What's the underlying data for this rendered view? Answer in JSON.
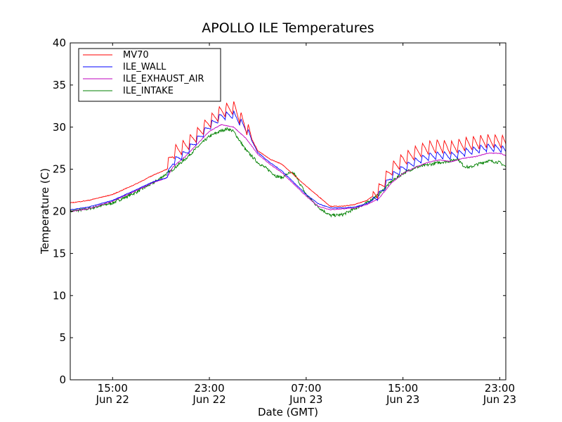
{
  "chart_data": {
    "type": "line",
    "title": "APOLLO ILE Temperatures",
    "xlabel": "Date (GMT)",
    "ylabel": "Temperature (C)",
    "ylim": [
      0,
      40
    ],
    "yticks": [
      0,
      5,
      10,
      15,
      20,
      25,
      30,
      35,
      40
    ],
    "xlim": [
      11.5,
      47.5
    ],
    "xaxis_unit": "hours since Jun 22 00:00 GMT",
    "xticks": [
      {
        "value": 15,
        "time": "15:00",
        "date": "Jun 22"
      },
      {
        "value": 23,
        "time": "23:00",
        "date": "Jun 22"
      },
      {
        "value": 31,
        "time": "07:00",
        "date": "Jun 23"
      },
      {
        "value": 39,
        "time": "15:00",
        "date": "Jun 23"
      },
      {
        "value": 47,
        "time": "23:00",
        "date": "Jun 23"
      }
    ],
    "legend_position": "top-left",
    "series": [
      {
        "name": "MV70",
        "color": "#ff0000",
        "cycle_peaks": true,
        "x": [
          11.5,
          13,
          15,
          17,
          18.5,
          19.5,
          20,
          21,
          22,
          23,
          24,
          25,
          26,
          27,
          28,
          29,
          30,
          31,
          32,
          33,
          34,
          35,
          36,
          37,
          38,
          39,
          40,
          41,
          42,
          43,
          44,
          45,
          46,
          47,
          47.5
        ],
        "values": [
          21.0,
          21.3,
          22.0,
          23.3,
          24.4,
          25.0,
          26.8,
          27.6,
          29.0,
          30.5,
          31.7,
          32.2,
          30.0,
          27.2,
          26.2,
          25.6,
          24.3,
          23.0,
          21.8,
          20.6,
          20.6,
          20.8,
          21.3,
          22.3,
          24.8,
          26.0,
          26.8,
          27.4,
          27.6,
          27.4,
          27.8,
          28.0,
          28.2,
          28.2,
          28.0
        ]
      },
      {
        "name": "ILE_WALL",
        "color": "#0000ff",
        "cycle_peaks": true,
        "x": [
          11.5,
          13,
          15,
          17,
          18.5,
          19.5,
          20,
          21,
          22,
          23,
          24,
          25,
          26,
          27,
          28,
          29,
          30,
          31,
          32,
          33,
          34,
          35,
          36,
          37,
          38,
          39,
          40,
          41,
          42,
          43,
          44,
          45,
          46,
          47,
          47.5
        ],
        "values": [
          20.2,
          20.5,
          21.3,
          22.6,
          23.6,
          24.0,
          25.8,
          26.8,
          28.4,
          30.0,
          31.2,
          31.4,
          29.8,
          27.0,
          25.8,
          24.8,
          23.4,
          22.0,
          20.9,
          20.4,
          20.4,
          20.5,
          20.9,
          21.8,
          24.0,
          25.0,
          25.8,
          26.4,
          26.6,
          26.5,
          26.9,
          27.2,
          27.5,
          27.4,
          27.1
        ]
      },
      {
        "name": "ILE_EXHAUST_AIR",
        "color": "#bf00bf",
        "cycle_peaks": false,
        "x": [
          11.5,
          13,
          15,
          17,
          18.5,
          19.5,
          20,
          21,
          22,
          23,
          24,
          25,
          26,
          27,
          28,
          29,
          30,
          31,
          32,
          33,
          34,
          35,
          36,
          37,
          38,
          39,
          40,
          41,
          42,
          43,
          44,
          45,
          46,
          47,
          47.5
        ],
        "values": [
          20.0,
          20.3,
          21.2,
          22.5,
          23.5,
          24.0,
          25.3,
          26.5,
          28.0,
          29.5,
          30.3,
          30.0,
          28.7,
          26.8,
          25.6,
          24.6,
          23.2,
          21.8,
          20.6,
          20.2,
          20.3,
          20.4,
          20.8,
          21.5,
          23.3,
          24.5,
          25.2,
          25.8,
          26.1,
          25.9,
          26.3,
          26.5,
          26.9,
          26.9,
          26.6
        ]
      },
      {
        "name": "ILE_INTAKE",
        "color": "#008000",
        "cycle_peaks": false,
        "x": [
          11.5,
          13,
          15,
          17,
          18.5,
          19.5,
          20,
          21,
          22,
          23,
          24,
          24.5,
          25,
          26,
          27,
          28,
          28.5,
          29,
          29.5,
          30,
          31,
          32,
          33,
          34,
          35,
          36,
          37,
          38,
          39,
          40,
          41,
          42,
          43,
          43.5,
          44,
          44.5,
          45,
          46,
          47,
          47.5
        ],
        "values": [
          20.0,
          20.3,
          21.0,
          22.3,
          23.5,
          24.5,
          25.0,
          26.2,
          27.6,
          28.9,
          29.6,
          29.8,
          29.5,
          27.3,
          25.8,
          24.8,
          24.2,
          24.0,
          24.5,
          24.5,
          22.0,
          20.5,
          19.5,
          19.6,
          20.3,
          21.0,
          22.0,
          23.5,
          24.5,
          25.2,
          25.5,
          25.8,
          26.0,
          26.3,
          25.4,
          25.2,
          25.5,
          26.0,
          25.8,
          25.3
        ]
      }
    ]
  }
}
